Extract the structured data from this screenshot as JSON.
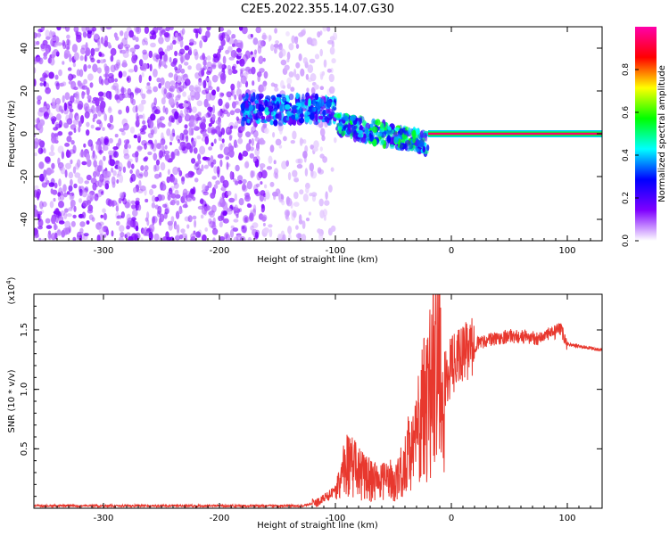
{
  "figure": {
    "title": "C2E5.2022.355.14.07.G30"
  },
  "chart_data": [
    {
      "type": "heatmap",
      "xlabel": "Height of straight line (km)",
      "ylabel": "Frequency (Hz)",
      "xlim": [
        -360,
        130
      ],
      "ylim": [
        -50,
        50
      ],
      "xticks": [
        -300,
        -200,
        -100,
        0,
        100
      ],
      "yticks": [
        -40,
        -20,
        0,
        20,
        40
      ],
      "colorbar": {
        "label": "Normalized spectral amplitude",
        "range": [
          0,
          1
        ],
        "ticks": [
          "0.0",
          "0.2",
          "0.4",
          "0.6",
          "0.8"
        ],
        "colors": [
          "#ffffff",
          "#7f00ff",
          "#0000ff",
          "#00ffff",
          "#00ff00",
          "#ffff00",
          "#ff0000",
          "#ff00aa"
        ]
      },
      "regions": [
        {
          "x": [
            -360,
            -160
          ],
          "freq": [
            -50,
            50
          ],
          "amplitude": 0.12
        },
        {
          "x": [
            -160,
            -100
          ],
          "freq": [
            -50,
            50
          ],
          "amplitude": 0.05
        },
        {
          "x": [
            -180,
            -100
          ],
          "freq": [
            5,
            18
          ],
          "amplitude": 0.35
        },
        {
          "x": [
            -100,
            -20
          ],
          "freq_start": [
            0,
            10
          ],
          "freq_end": [
            -10,
            0
          ],
          "amplitude": 0.45
        },
        {
          "x": [
            -20,
            130
          ],
          "freq": [
            -1,
            1
          ],
          "amplitude": 0.95
        }
      ]
    },
    {
      "type": "line",
      "xlabel": "Height of straight line (km)",
      "ylabel": "SNR (10 * v/v)",
      "y_multiplier": "(x10",
      "y_multiplier_exp": "4",
      "y_multiplier_close": ")",
      "xlim": [
        -360,
        130
      ],
      "ylim": [
        0,
        1.8
      ],
      "xticks": [
        -300,
        -200,
        -100,
        0,
        100
      ],
      "yticks": [
        0.5,
        1.0,
        1.5
      ],
      "series": [
        {
          "color": "#e8382e",
          "points": [
            [
              -360,
              0.02
            ],
            [
              -300,
              0.02
            ],
            [
              -200,
              0.02
            ],
            [
              -130,
              0.02
            ],
            [
              -115,
              0.05
            ],
            [
              -100,
              0.15
            ],
            [
              -90,
              0.45
            ],
            [
              -75,
              0.3
            ],
            [
              -60,
              0.25
            ],
            [
              -45,
              0.3
            ],
            [
              -35,
              0.6
            ],
            [
              -25,
              0.9
            ],
            [
              -18,
              1.2
            ],
            [
              -12,
              1.85
            ],
            [
              -8,
              1.0
            ],
            [
              0,
              1.2
            ],
            [
              10,
              1.3
            ],
            [
              25,
              1.4
            ],
            [
              50,
              1.45
            ],
            [
              75,
              1.43
            ],
            [
              95,
              1.5
            ],
            [
              100,
              1.38
            ],
            [
              130,
              1.33
            ]
          ]
        }
      ]
    }
  ]
}
